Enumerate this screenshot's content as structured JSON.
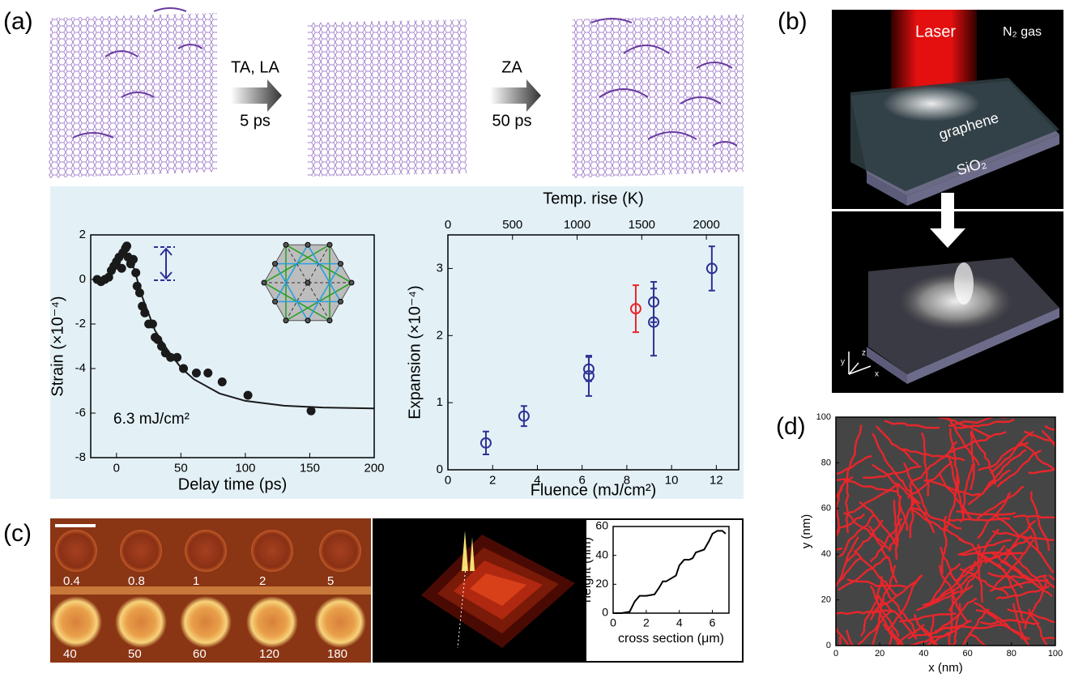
{
  "panels": {
    "a": "(a)",
    "b": "(b)",
    "c": "(c)",
    "d": "(d)"
  },
  "schematic": {
    "step1": "TA, LA",
    "time1": "5 ps",
    "step2": "ZA",
    "time2": "50 ps"
  },
  "render": {
    "laser": "Laser",
    "gas": "N₂ gas",
    "sheet": "graphene",
    "substrate": "SiO₂",
    "axes": [
      "z",
      "y",
      "x"
    ]
  },
  "afm": {
    "labels": [
      "0.4",
      "0.8",
      "1",
      "2",
      "5",
      "40",
      "50",
      "60",
      "120",
      "180"
    ]
  },
  "chart_data": [
    {
      "type": "scatter",
      "xlabel": "Delay time (ps)",
      "ylabel": "Strain (×10⁻⁴)",
      "annotation": "6.3 mJ/cm²",
      "xlim": [
        -20,
        200
      ],
      "ylim": [
        -8,
        2
      ],
      "xticks": [
        0,
        50,
        100,
        150,
        200
      ],
      "yticks": [
        -8,
        -6,
        -4,
        -2,
        0,
        2
      ],
      "series": [
        {
          "mode": "markers",
          "color": "#1a1a1a",
          "x": [
            -15,
            -12,
            -9,
            -6,
            -4,
            -2,
            0,
            2,
            4,
            5,
            7,
            8,
            9,
            11,
            13,
            15,
            16,
            18,
            20,
            22,
            25,
            28,
            30,
            32,
            35,
            38,
            42,
            47,
            52,
            62,
            71,
            82,
            102,
            151
          ],
          "values": [
            0,
            -0.1,
            0,
            0.1,
            0.4,
            0.6,
            0.8,
            1.0,
            0.5,
            1.2,
            1.4,
            1.5,
            1.0,
            0.7,
            0.9,
            0.3,
            -0.3,
            -0.6,
            -1.2,
            -1.5,
            -2.0,
            -2.0,
            -2.6,
            -2.7,
            -3.0,
            -3.3,
            -3.5,
            -3.5,
            -4.0,
            -4.2,
            -4.2,
            -4.6,
            -5.2,
            -5.9
          ]
        },
        {
          "mode": "line",
          "color": "#1a1a1a",
          "x": [
            10,
            20,
            30,
            40,
            50,
            60,
            80,
            100,
            130,
            160,
            200
          ],
          "values": [
            1.2,
            -0.78,
            -2.3,
            -3.2,
            -3.96,
            -4.48,
            -5.12,
            -5.45,
            -5.67,
            -5.75,
            -5.79
          ]
        }
      ]
    },
    {
      "type": "scatter",
      "xlabel": "Fluence (mJ/cm²)",
      "ylabel": "Expansion (×10⁻⁴)",
      "x2label": "Temp. rise (K)",
      "xlim": [
        0,
        13
      ],
      "ylim": [
        0,
        3.5
      ],
      "xticks": [
        0,
        2,
        4,
        6,
        8,
        10,
        12
      ],
      "yticks": [
        0,
        1,
        2,
        3
      ],
      "x2lim": [
        0,
        2250
      ],
      "x2ticks": [
        0,
        500,
        1000,
        1500,
        2000
      ],
      "series": [
        {
          "mode": "markers",
          "open": true,
          "color": "#2e3192",
          "x": [
            1.7,
            3.4,
            6.3,
            6.3,
            9.2,
            9.2,
            11.8
          ],
          "values": [
            0.4,
            0.8,
            1.4,
            1.5,
            2.2,
            2.5,
            3.0
          ],
          "errors": [
            0.17,
            0.15,
            0.3,
            0.18,
            0.5,
            0.3,
            0.33
          ]
        },
        {
          "mode": "markers",
          "open": true,
          "color": "#e8262b",
          "x": [
            8.4
          ],
          "values": [
            2.4
          ],
          "errors": [
            0.35
          ]
        }
      ]
    },
    {
      "type": "line",
      "xlabel": "cross section (μm)",
      "ylabel": "height (nm)",
      "xlim": [
        0,
        7
      ],
      "ylim": [
        0,
        60
      ],
      "xticks": [
        0,
        2,
        4,
        6
      ],
      "yticks": [
        0,
        20,
        40,
        60
      ],
      "series": [
        {
          "mode": "line",
          "color": "#000000",
          "x": [
            0,
            0.5,
            1.0,
            1.3,
            1.6,
            2.0,
            2.5,
            2.8,
            3.0,
            3.2,
            3.5,
            3.8,
            4.0,
            4.3,
            4.6,
            4.8,
            5.0,
            5.5,
            5.8,
            6.0,
            6.3,
            6.6,
            6.8
          ],
          "values": [
            0,
            0,
            1,
            8,
            12,
            12,
            13,
            18,
            22,
            22,
            24,
            26,
            33,
            37,
            37,
            38,
            42,
            44,
            50,
            55,
            57,
            57,
            55
          ]
        }
      ]
    },
    {
      "type": "network",
      "xlabel": "x (nm)",
      "ylabel": "y (nm)",
      "color": "#e8262b",
      "background": "#454545",
      "xlim": [
        0,
        100
      ],
      "ylim": [
        0,
        100
      ],
      "xticks": [
        0,
        20,
        40,
        60,
        80,
        100
      ],
      "yticks": [
        0,
        20,
        40,
        60,
        80,
        100
      ]
    }
  ]
}
